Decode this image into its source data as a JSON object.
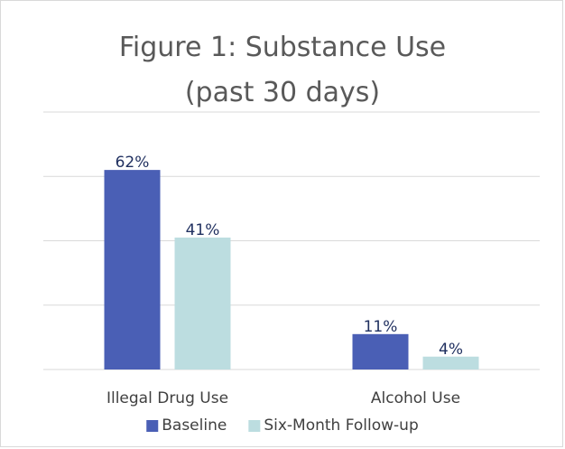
{
  "chart_data": {
    "type": "bar",
    "title": "Figure 1: Substance Use",
    "subtitle": "(past 30 days)",
    "categories": [
      "Illegal Drug Use",
      "Alcohol Use"
    ],
    "series": [
      {
        "name": "Baseline",
        "values": [
          62,
          11
        ],
        "labels": [
          "62%",
          "11%"
        ],
        "color": "#4a5fb5"
      },
      {
        "name": "Six-Month Follow-up",
        "values": [
          41,
          4
        ],
        "labels": [
          "41%",
          "4%"
        ],
        "color": "#bcdde0"
      }
    ],
    "ylim": [
      0,
      80
    ],
    "grid": true,
    "legend_position": "bottom",
    "xlabel": "",
    "ylabel": ""
  }
}
